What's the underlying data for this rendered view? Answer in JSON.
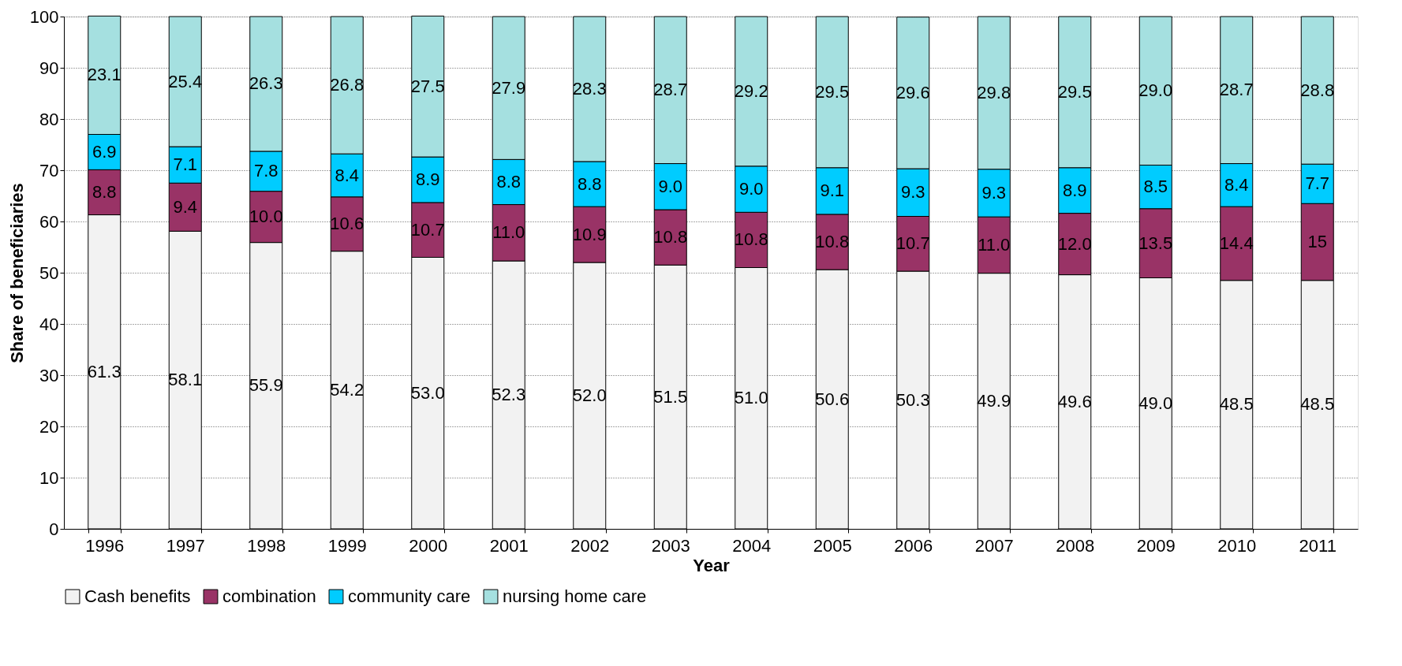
{
  "chart_data": {
    "type": "bar",
    "stacked": true,
    "xlabel": "Year",
    "ylabel": "Share of beneficiaries",
    "categories": [
      "1996",
      "1997",
      "1998",
      "1999",
      "2000",
      "2001",
      "2002",
      "2003",
      "2004",
      "2005",
      "2006",
      "2007",
      "2008",
      "2009",
      "2010",
      "2011"
    ],
    "series": [
      {
        "name": "Cash benefits",
        "color": "#f2f2f2",
        "values": [
          61.3,
          58.1,
          55.9,
          54.2,
          53.0,
          52.3,
          52.0,
          51.5,
          51.0,
          50.6,
          50.3,
          49.9,
          49.6,
          49.0,
          48.5,
          48.5
        ],
        "value_labels": [
          "61.3",
          "58.1",
          "55.9",
          "54.2",
          "53.0",
          "52.3",
          "52.0",
          "51.5",
          "51.0",
          "50.6",
          "50.3",
          "49.9",
          "49.6",
          "49.0",
          "48.5",
          "48.5"
        ]
      },
      {
        "name": "combination",
        "color": "#993366",
        "values": [
          8.8,
          9.4,
          10.0,
          10.6,
          10.7,
          11.0,
          10.9,
          10.8,
          10.8,
          10.8,
          10.7,
          11.0,
          12.0,
          13.5,
          14.4,
          15
        ],
        "value_labels": [
          "8.8",
          "9.4",
          "10.0",
          "10.6",
          "10.7",
          "11.0",
          "10.9",
          "10.8",
          "10.8",
          "10.8",
          "10.7",
          "11.0",
          "12.0",
          "13.5",
          "14.4",
          "15"
        ]
      },
      {
        "name": "community care",
        "color": "#00ccff",
        "values": [
          6.9,
          7.1,
          7.8,
          8.4,
          8.9,
          8.8,
          8.8,
          9.0,
          9.0,
          9.1,
          9.3,
          9.3,
          8.9,
          8.5,
          8.4,
          7.7
        ],
        "value_labels": [
          "6.9",
          "7.1",
          "7.8",
          "8.4",
          "8.9",
          "8.8",
          "8.8",
          "9.0",
          "9.0",
          "9.1",
          "9.3",
          "9.3",
          "8.9",
          "8.5",
          "8.4",
          "7.7"
        ]
      },
      {
        "name": "nursing home care",
        "color": "#a5e0e0",
        "values": [
          23.1,
          25.4,
          26.3,
          26.8,
          27.5,
          27.9,
          28.3,
          28.7,
          29.2,
          29.5,
          29.6,
          29.8,
          29.5,
          29.0,
          28.7,
          28.8
        ],
        "value_labels": [
          "23.1",
          "25.4",
          "26.3",
          "26.8",
          "27.5",
          "27.9",
          "28.3",
          "28.7",
          "29.2",
          "29.5",
          "29.6",
          "29.8",
          "29.5",
          "29.0",
          "28.7",
          "28.8"
        ]
      }
    ],
    "ylim": [
      0,
      100
    ],
    "yticks": [
      0,
      10,
      20,
      30,
      40,
      50,
      60,
      70,
      80,
      90,
      100
    ],
    "grid": "y",
    "legend": "bottom"
  }
}
